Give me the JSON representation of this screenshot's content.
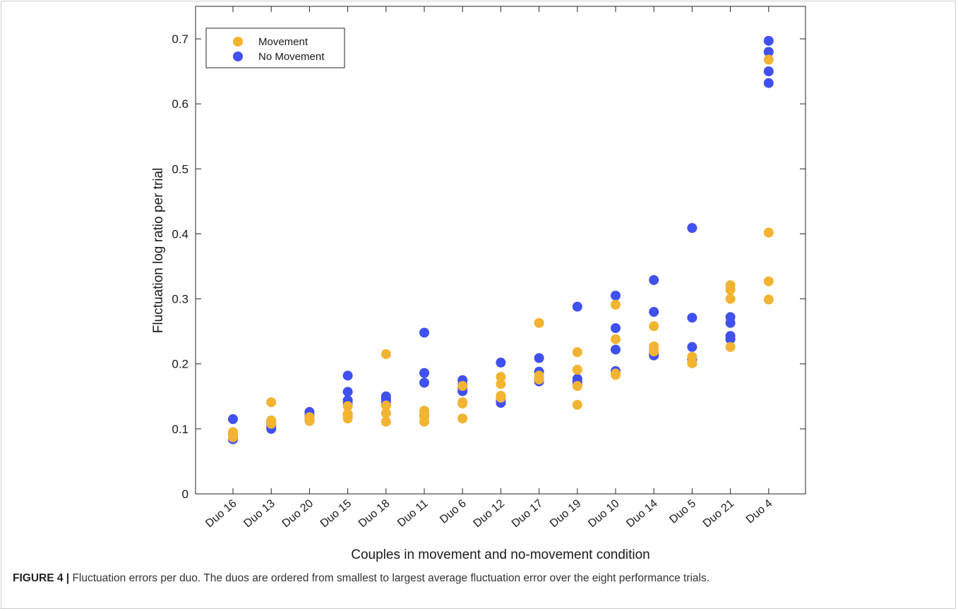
{
  "caption": {
    "label": "FIGURE 4 |",
    "text": " Fluctuation errors per duo. The duos are ordered from smallest to largest average fluctuation error over the eight performance trials."
  },
  "chart_data": {
    "type": "scatter",
    "xlabel": "Couples in movement and no-movement condition",
    "ylabel": "Fluctuation log ratio per trial",
    "ylim": [
      0,
      0.75
    ],
    "yticks": [
      0,
      0.1,
      0.2,
      0.3,
      0.4,
      0.5,
      0.6,
      0.7
    ],
    "ytick_labels": [
      "0",
      "0.1",
      "0.2",
      "0.3",
      "0.4",
      "0.5",
      "0.6",
      "0.7"
    ],
    "categories": [
      "Duo 16",
      "Duo 13",
      "Duo 20",
      "Duo 15",
      "Duo 18",
      "Duo 11",
      "Duo 6",
      "Duo 12",
      "Duo 17",
      "Duo 19",
      "Duo 10",
      "Duo 14",
      "Duo 5",
      "Duo 21",
      "Duo 4"
    ],
    "legend_position": "top-left",
    "grid": false,
    "series": [
      {
        "name": "No Movement",
        "color": "#4150f0",
        "values": [
          [
            0.115,
            0.09,
            0.088,
            0.084
          ],
          [
            0.1,
            0.104,
            0.107,
            0.11
          ],
          [
            0.126,
            0.121,
            0.117,
            0.113
          ],
          [
            0.182,
            0.157,
            0.144,
            0.139
          ],
          [
            0.15,
            0.146,
            0.141,
            0.137
          ],
          [
            0.248,
            0.186,
            0.171,
            0.12
          ],
          [
            0.175,
            0.168,
            0.163,
            0.158
          ],
          [
            0.202,
            0.148,
            0.143,
            0.14
          ],
          [
            0.209,
            0.188,
            0.177,
            0.173
          ],
          [
            0.288,
            0.177,
            0.172,
            0.168
          ],
          [
            0.305,
            0.255,
            0.222,
            0.189
          ],
          [
            0.329,
            0.28,
            0.216,
            0.213
          ],
          [
            0.409,
            0.271,
            0.226,
            0.207
          ],
          [
            0.272,
            0.263,
            0.243,
            0.238
          ],
          [
            0.697,
            0.68,
            0.65,
            0.632
          ]
        ]
      },
      {
        "name": "Movement",
        "color": "#f2b431",
        "values": [
          [
            0.095,
            0.093,
            0.091,
            0.087
          ],
          [
            0.141,
            0.113,
            0.111,
            0.108
          ],
          [
            0.118,
            0.117,
            0.115,
            0.112
          ],
          [
            0.135,
            0.123,
            0.121,
            0.116
          ],
          [
            0.215,
            0.136,
            0.124,
            0.111
          ],
          [
            0.128,
            0.124,
            0.119,
            0.111
          ],
          [
            0.166,
            0.141,
            0.139,
            0.116
          ],
          [
            0.18,
            0.169,
            0.151,
            0.148
          ],
          [
            0.263,
            0.182,
            0.179,
            0.176
          ],
          [
            0.218,
            0.191,
            0.166,
            0.137
          ],
          [
            0.291,
            0.238,
            0.185,
            0.183
          ],
          [
            0.258,
            0.227,
            0.223,
            0.219
          ],
          [
            0.211,
            0.201,
            0.201,
            0.201
          ],
          [
            0.321,
            0.314,
            0.3,
            0.226
          ],
          [
            0.668,
            0.402,
            0.327,
            0.299
          ]
        ]
      }
    ],
    "legend_order": [
      "Movement",
      "No Movement"
    ]
  }
}
